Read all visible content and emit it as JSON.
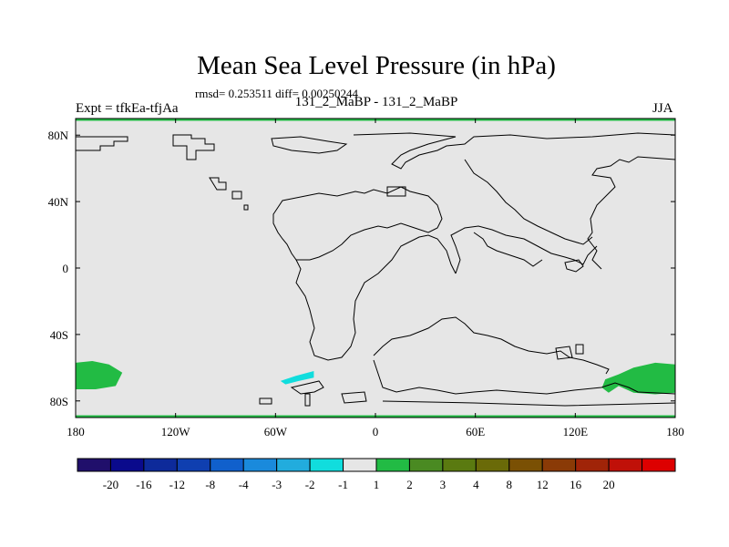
{
  "title": "Mean Sea Level Pressure (in hPa)",
  "stats": "rmsd= 0.253511 diff= 0.00250244",
  "subtitle": "131_2_MaBP - 131_2_MaBP",
  "experiment": "Expt = tfkEa-tfjAa",
  "season": "JJA",
  "map": {
    "projection": "cylindrical-equidistant",
    "lon_range": [
      -180,
      180
    ],
    "lat_range": [
      -90,
      90
    ],
    "background_value_class": "-1 to 1",
    "lon_ticks": [
      {
        "value": -180,
        "label": "180"
      },
      {
        "value": -120,
        "label": "120W"
      },
      {
        "value": -60,
        "label": "60W"
      },
      {
        "value": 0,
        "label": "0"
      },
      {
        "value": 60,
        "label": "60E"
      },
      {
        "value": 120,
        "label": "120E"
      },
      {
        "value": 180,
        "label": "180"
      }
    ],
    "lat_ticks": [
      {
        "value": 80,
        "label": "80N"
      },
      {
        "value": 40,
        "label": "40N"
      },
      {
        "value": 0,
        "label": "0"
      },
      {
        "value": -40,
        "label": "40S"
      },
      {
        "value": -80,
        "label": "80S"
      }
    ],
    "colors": {
      "ocean": "#e6e6e6",
      "coast": "#000000",
      "positive_anomaly": "#22bb44",
      "negative_anomaly": "#11dddd",
      "frame_edge": "#22bb44"
    },
    "anomaly_regions": [
      {
        "name": "southwest-pacific-positive",
        "class": "1 to 2",
        "color": "#22bb44",
        "outline": [
          [
            -180,
            -57
          ],
          [
            -170,
            -56
          ],
          [
            -160,
            -58
          ],
          [
            -152,
            -63
          ],
          [
            -156,
            -71
          ],
          [
            -168,
            -73
          ],
          [
            -180,
            -73
          ]
        ]
      },
      {
        "name": "southeast-pacific-positive",
        "class": "1 to 2",
        "color": "#22bb44",
        "outline": [
          [
            180,
            -58
          ],
          [
            168,
            -57
          ],
          [
            155,
            -60
          ],
          [
            146,
            -64
          ],
          [
            138,
            -67
          ],
          [
            136,
            -72
          ],
          [
            140,
            -75
          ],
          [
            146,
            -71
          ],
          [
            155,
            -75
          ],
          [
            168,
            -76
          ],
          [
            180,
            -75
          ]
        ]
      },
      {
        "name": "weddell-negative",
        "class": "-2 to -1",
        "color": "#11dddd",
        "outline": [
          [
            -57,
            -68
          ],
          [
            -48,
            -65
          ],
          [
            -37,
            -62
          ],
          [
            -37,
            -66
          ],
          [
            -46,
            -68
          ],
          [
            -54,
            -70
          ]
        ]
      }
    ]
  },
  "colorbar": {
    "colors": [
      "#200f6b",
      "#0a0a8c",
      "#0d2a9a",
      "#0f3fb0",
      "#1060cc",
      "#1a8adc",
      "#22acdd",
      "#11dddd",
      "#e6e6e6",
      "#22bb44",
      "#4a8a22",
      "#5a7a10",
      "#6a6a08",
      "#7a5004",
      "#8a3a06",
      "#a02408",
      "#c01008",
      "#dd0000"
    ],
    "labels": [
      "-20",
      "-16",
      "-12",
      "-8",
      "-4",
      "-3",
      "-2",
      "-1",
      "1",
      "2",
      "3",
      "4",
      "8",
      "12",
      "16",
      "20"
    ]
  }
}
